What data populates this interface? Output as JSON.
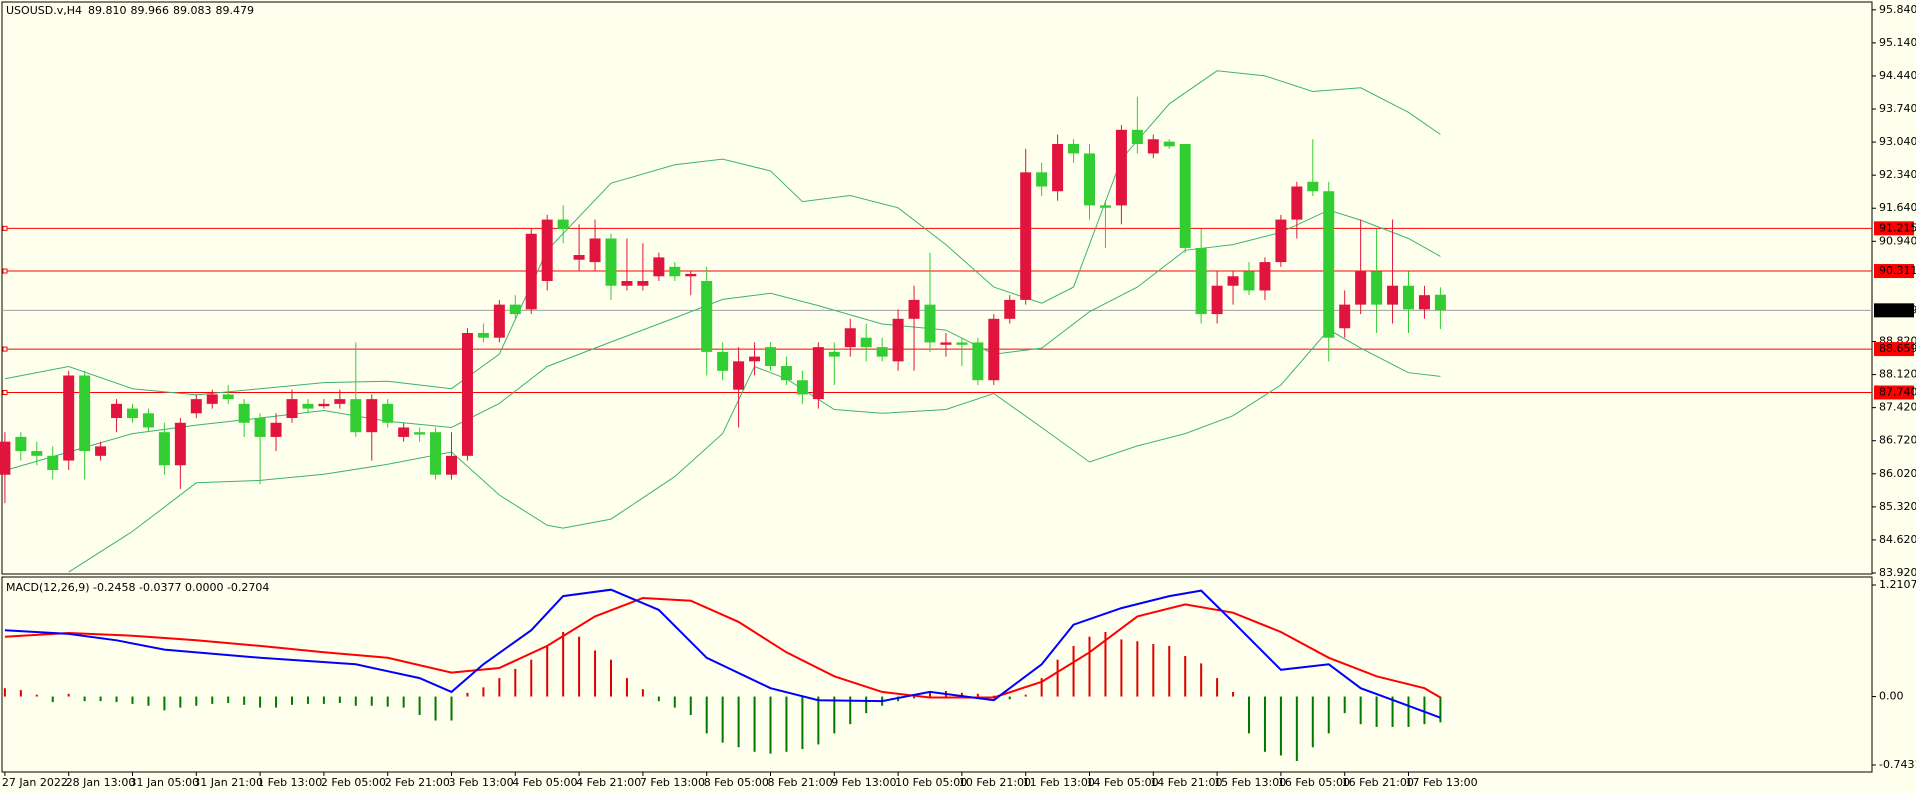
{
  "chart_data": [
    {
      "type": "candlestick",
      "symbol": "USOUSD.v,H4",
      "ohlc_labels": [
        "89.810",
        "89.966",
        "89.083",
        "89.479"
      ],
      "categories": [
        "27 Jan 2022",
        null,
        null,
        null,
        "28 Jan 13:00",
        null,
        null,
        null,
        "31 Jan 05:00",
        null,
        null,
        null,
        "31 Jan 21:00",
        null,
        null,
        null,
        "1 Feb 13:00",
        null,
        null,
        null,
        "2 Feb 05:00",
        null,
        null,
        null,
        "2 Feb 21:00",
        null,
        null,
        null,
        "3 Feb 13:00",
        null,
        null,
        null,
        "4 Feb 05:00",
        null,
        null,
        null,
        "4 Feb 21:00",
        null,
        null,
        null,
        "7 Feb 13:00",
        null,
        null,
        null,
        "8 Feb 05:00",
        null,
        null,
        null,
        "8 Feb 21:00",
        null,
        null,
        null,
        "9 Feb 13:00",
        null,
        null,
        null,
        "10 Feb 05:00",
        null,
        null,
        null,
        "10 Feb 21:00",
        null,
        null,
        null,
        "11 Feb 13:00",
        null,
        null,
        null,
        "14 Feb 05:00",
        null,
        null,
        null,
        "14 Feb 21:00",
        null,
        null,
        null,
        "15 Feb 13:00",
        null,
        null,
        null,
        "16 Feb 05:00",
        null,
        null,
        null,
        "16 Feb 21:00",
        null,
        null,
        null,
        "17 Feb 13:00",
        null,
        null
      ],
      "open": [
        86.0,
        86.8,
        86.5,
        86.4,
        86.3,
        88.1,
        86.4,
        87.2,
        87.4,
        87.3,
        86.9,
        86.2,
        87.3,
        87.5,
        87.7,
        87.5,
        87.2,
        86.8,
        87.2,
        87.5,
        87.45,
        87.5,
        87.6,
        86.9,
        87.5,
        86.8,
        86.9,
        86.9,
        86.0,
        86.4,
        89.0,
        88.9,
        89.6,
        89.5,
        90.1,
        91.4,
        90.55,
        90.5,
        91.0,
        90.0,
        90.0,
        90.2,
        90.4,
        90.2,
        90.1,
        88.6,
        87.8,
        88.4,
        88.7,
        88.3,
        88.0,
        87.6,
        88.6,
        88.7,
        88.9,
        88.7,
        88.4,
        89.3,
        89.6,
        88.75,
        88.8,
        88.8,
        88.0,
        89.3,
        89.7,
        92.4,
        92.0,
        93.0,
        92.8,
        91.7,
        91.7,
        93.3,
        92.8,
        93.05,
        93.0,
        90.8,
        89.4,
        90.0,
        90.3,
        89.9,
        90.5,
        91.4,
        92.2,
        92.0,
        89.1,
        89.6,
        90.3,
        89.6,
        90.0,
        89.5,
        89.81
      ],
      "high": [
        86.9,
        86.9,
        86.7,
        86.6,
        88.2,
        88.2,
        86.7,
        87.6,
        87.5,
        87.4,
        87.1,
        87.2,
        87.7,
        87.8,
        87.9,
        87.6,
        87.3,
        87.3,
        87.8,
        87.6,
        87.6,
        87.8,
        88.8,
        87.7,
        87.6,
        87.1,
        87.0,
        87.0,
        86.9,
        89.1,
        89.2,
        89.7,
        89.8,
        91.2,
        91.5,
        91.7,
        91.3,
        91.4,
        91.1,
        91.0,
        90.9,
        90.7,
        90.5,
        90.3,
        90.4,
        88.8,
        88.7,
        88.8,
        88.8,
        88.5,
        88.2,
        88.8,
        88.8,
        89.3,
        89.2,
        88.9,
        89.5,
        90.0,
        90.7,
        89.0,
        88.9,
        88.9,
        89.4,
        89.8,
        92.9,
        92.6,
        93.2,
        93.1,
        93.0,
        91.8,
        93.4,
        94.0,
        93.2,
        93.1,
        93.0,
        91.2,
        90.3,
        90.3,
        90.5,
        90.6,
        91.5,
        92.2,
        93.1,
        92.2,
        89.9,
        91.4,
        91.2,
        91.4,
        90.3,
        90.0,
        89.966
      ],
      "low": [
        85.4,
        86.3,
        86.2,
        85.9,
        86.1,
        85.9,
        86.3,
        86.9,
        87.1,
        86.9,
        86.0,
        85.7,
        87.2,
        87.4,
        87.5,
        86.8,
        85.8,
        86.5,
        87.1,
        87.3,
        87.4,
        87.4,
        86.8,
        86.3,
        87.0,
        86.7,
        86.7,
        85.9,
        85.9,
        86.3,
        88.8,
        88.8,
        89.3,
        89.4,
        89.9,
        90.9,
        90.3,
        90.3,
        89.7,
        89.9,
        89.9,
        90.1,
        90.1,
        89.8,
        88.1,
        88.0,
        87.0,
        88.1,
        88.2,
        87.9,
        87.5,
        87.4,
        87.9,
        88.5,
        88.4,
        88.4,
        88.2,
        88.2,
        88.6,
        88.5,
        88.3,
        87.9,
        87.9,
        89.2,
        89.6,
        91.9,
        91.8,
        92.6,
        91.4,
        90.8,
        91.3,
        92.8,
        92.7,
        92.9,
        90.7,
        89.2,
        89.2,
        89.6,
        89.8,
        89.7,
        90.4,
        91.0,
        91.9,
        88.4,
        88.9,
        89.4,
        89.0,
        89.2,
        89.0,
        89.3,
        89.083
      ],
      "close": [
        86.7,
        86.5,
        86.4,
        86.1,
        88.1,
        86.5,
        86.6,
        87.5,
        87.2,
        87.0,
        86.2,
        87.1,
        87.6,
        87.7,
        87.6,
        87.1,
        86.8,
        87.1,
        87.6,
        87.4,
        87.5,
        87.6,
        86.9,
        87.6,
        87.1,
        87.0,
        86.85,
        86.0,
        86.4,
        89.0,
        88.9,
        89.6,
        89.4,
        91.1,
        91.4,
        91.2,
        90.65,
        91.0,
        90.0,
        90.1,
        90.1,
        90.6,
        90.2,
        90.25,
        88.6,
        88.2,
        88.4,
        88.5,
        88.3,
        88.0,
        87.7,
        88.7,
        88.5,
        89.1,
        88.7,
        88.5,
        89.3,
        89.7,
        88.8,
        88.8,
        88.75,
        88.0,
        89.3,
        89.7,
        92.4,
        92.1,
        93.0,
        92.8,
        91.7,
        91.65,
        93.3,
        93.0,
        93.1,
        92.95,
        90.8,
        89.4,
        90.0,
        90.2,
        89.9,
        90.5,
        91.4,
        92.1,
        92.0,
        88.9,
        89.6,
        90.3,
        89.6,
        90.0,
        89.5,
        89.8,
        89.479
      ],
      "up_color": "#e0143c",
      "down_color": "#32cd32",
      "lines": [
        {
          "color": "#3cb371",
          "x": [
            0,
            4,
            8,
            12,
            16,
            20,
            24,
            28,
            31,
            34,
            38,
            42,
            45,
            48,
            50,
            53,
            56,
            59,
            62,
            65,
            67,
            70,
            73,
            76,
            79,
            82,
            85,
            88,
            90
          ],
          "values": [
            88.03,
            88.29,
            87.82,
            87.69,
            87.82,
            87.95,
            87.98,
            87.82,
            88.55,
            90.75,
            92.17,
            92.56,
            92.68,
            92.43,
            91.78,
            91.91,
            91.65,
            90.87,
            89.97,
            89.63,
            89.97,
            92.68,
            93.85,
            94.55,
            94.44,
            94.11,
            94.19,
            93.67,
            93.2
          ]
        },
        {
          "color": "#3cb371",
          "x": [
            0,
            4,
            8,
            12,
            16,
            20,
            24,
            28,
            31,
            34,
            38,
            42,
            45,
            48,
            51,
            55,
            59,
            62,
            65,
            68,
            71,
            74,
            77,
            80,
            83,
            85,
            88,
            90
          ],
          "values": [
            86.09,
            86.48,
            86.87,
            87.05,
            87.2,
            87.36,
            87.13,
            87.0,
            87.51,
            88.29,
            88.81,
            89.32,
            89.71,
            89.84,
            89.58,
            89.19,
            89.06,
            88.55,
            88.68,
            89.45,
            89.97,
            90.75,
            90.87,
            91.13,
            91.6,
            91.39,
            91.0,
            90.62
          ]
        },
        {
          "color": "#3cb371",
          "x": [
            4,
            8,
            12,
            16,
            20,
            24,
            28,
            31,
            34,
            35,
            38,
            42,
            45,
            47,
            49,
            52,
            55,
            59,
            62,
            65,
            68,
            71,
            74,
            77,
            80,
            83,
            85,
            88,
            90
          ],
          "values": [
            83.94,
            84.8,
            85.83,
            85.88,
            86.01,
            86.22,
            86.48,
            85.57,
            84.93,
            84.87,
            85.06,
            85.96,
            86.87,
            88.29,
            88.03,
            87.38,
            87.3,
            87.38,
            87.72,
            87.0,
            86.27,
            86.61,
            86.87,
            87.25,
            87.9,
            89.07,
            88.68,
            88.16,
            88.08
          ]
        }
      ],
      "levels": [
        {
          "value": 91.215,
          "label": "91.215"
        },
        {
          "value": 90.311,
          "label": "90.311"
        },
        {
          "value": 88.659,
          "label": "88.659"
        },
        {
          "value": 87.74,
          "label": "87.740"
        }
      ],
      "level_color": "#ff0000",
      "current_price": {
        "value": 89.479,
        "label": "89.479"
      },
      "ylim": [
        83.92,
        95.84
      ],
      "yticks": [
        {
          "value": 83.92,
          "label": "83.920"
        },
        {
          "value": 84.62,
          "label": "84.620"
        },
        {
          "value": 85.32,
          "label": "85.320"
        },
        {
          "value": 86.02,
          "label": "86.020"
        },
        {
          "value": 86.72,
          "label": "86.720"
        },
        {
          "value": 87.42,
          "label": "87.420"
        },
        {
          "value": 88.12,
          "label": "88.120"
        },
        {
          "value": 88.82,
          "label": "88.820"
        },
        {
          "value": 90.94,
          "label": "90.940"
        },
        {
          "value": 91.64,
          "label": "91.640"
        },
        {
          "value": 92.34,
          "label": "92.340"
        },
        {
          "value": 93.04,
          "label": "93.040"
        },
        {
          "value": 93.74,
          "label": "93.740"
        },
        {
          "value": 94.44,
          "label": "94.440"
        },
        {
          "value": 95.14,
          "label": "95.140"
        },
        {
          "value": 95.84,
          "label": "95.840"
        }
      ]
    },
    {
      "type": "macd",
      "title": "MACD(12,26,9) -0.2458 -0.0377 0.0000 -0.2704",
      "values": [
        0.09,
        0.07,
        0.02,
        -0.06,
        0.03,
        -0.05,
        -0.05,
        -0.06,
        -0.08,
        -0.1,
        -0.15,
        -0.12,
        -0.1,
        -0.08,
        -0.07,
        -0.09,
        -0.12,
        -0.12,
        -0.09,
        -0.08,
        -0.08,
        -0.07,
        -0.1,
        -0.1,
        -0.11,
        -0.12,
        -0.2,
        -0.26,
        -0.26,
        0.04,
        0.1,
        0.2,
        0.3,
        0.4,
        0.55,
        0.7,
        0.65,
        0.5,
        0.4,
        0.2,
        0.08,
        -0.05,
        -0.12,
        -0.2,
        -0.4,
        -0.5,
        -0.55,
        -0.6,
        -0.62,
        -0.6,
        -0.57,
        -0.52,
        -0.4,
        -0.3,
        -0.18,
        -0.1,
        -0.05,
        -0.02,
        0.04,
        0.06,
        0.04,
        0.03,
        0.01,
        -0.03,
        0.02,
        0.2,
        0.4,
        0.55,
        0.65,
        0.7,
        0.62,
        0.6,
        0.57,
        0.55,
        0.44,
        0.36,
        0.2,
        0.05,
        -0.4,
        -0.6,
        -0.64,
        -0.7,
        -0.55,
        -0.4,
        -0.18,
        -0.3,
        -0.33,
        -0.33,
        -0.33,
        -0.3,
        -0.28
      ],
      "up_color": "#e00000",
      "down_color": "#007800",
      "lines": [
        {
          "color": "#ff0000",
          "x": [
            0,
            4,
            8,
            12,
            16,
            20,
            24,
            28,
            31,
            34,
            37,
            40,
            43,
            46,
            49,
            52,
            55,
            58,
            62,
            65,
            68,
            71,
            74,
            77,
            80,
            83,
            86,
            89,
            90
          ],
          "values": [
            0.65,
            0.69,
            0.66,
            0.61,
            0.55,
            0.48,
            0.42,
            0.26,
            0.31,
            0.55,
            0.87,
            1.07,
            1.04,
            0.81,
            0.48,
            0.22,
            0.05,
            -0.01,
            -0.01,
            0.16,
            0.48,
            0.87,
            1.0,
            0.91,
            0.7,
            0.42,
            0.22,
            0.09,
            -0.01
          ]
        },
        {
          "color": "#0000ff",
          "x": [
            0,
            4,
            7,
            10,
            16,
            22,
            26,
            28,
            30,
            33,
            35,
            38,
            41,
            44,
            48,
            51,
            55,
            58,
            62,
            65,
            67,
            70,
            73,
            75,
            77,
            80,
            83,
            85,
            88,
            90
          ],
          "values": [
            0.72,
            0.68,
            0.61,
            0.51,
            0.42,
            0.35,
            0.2,
            0.05,
            0.35,
            0.72,
            1.09,
            1.16,
            0.94,
            0.42,
            0.09,
            -0.04,
            -0.05,
            0.05,
            -0.04,
            0.35,
            0.78,
            0.96,
            1.09,
            1.15,
            0.81,
            0.29,
            0.35,
            0.09,
            -0.1,
            -0.23
          ]
        }
      ],
      "ylim": [
        -0.7431,
        1.2107
      ],
      "yticks": [
        -0.7431,
        {
          "value": 0,
          "label": "0.00"
        },
        1.2107
      ]
    }
  ]
}
